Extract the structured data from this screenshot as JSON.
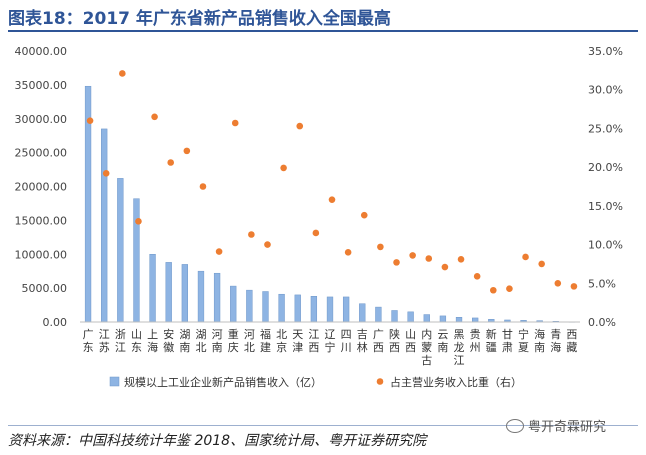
{
  "header": {
    "title": "图表18：2017 年广东省新产品销售收入全国最高"
  },
  "footer": {
    "source": "资料来源：中国科技统计年鉴 2018、国家统计局、粤开证券研究院",
    "watermark": "粤开奇霖研究"
  },
  "chart_data": {
    "type": "bar+scatter",
    "title": "",
    "categories": [
      "广东",
      "江苏",
      "浙江",
      "山东",
      "上海",
      "安徽",
      "湖南",
      "湖北",
      "河南",
      "重庆",
      "河北",
      "福建",
      "北京",
      "天津",
      "江西",
      "辽宁",
      "四川",
      "吉林",
      "广西",
      "陕西",
      "山西",
      "内蒙古",
      "云南",
      "黑龙江",
      "贵州",
      "新疆",
      "甘肃",
      "宁夏",
      "海南",
      "青海",
      "西藏"
    ],
    "category_labels": [
      [
        "广",
        "东"
      ],
      [
        "江",
        "苏"
      ],
      [
        "浙",
        "江"
      ],
      [
        "山",
        "东"
      ],
      [
        "上",
        "海"
      ],
      [
        "安",
        "徽"
      ],
      [
        "湖",
        "南"
      ],
      [
        "湖",
        "北"
      ],
      [
        "河",
        "南"
      ],
      [
        "重",
        "庆"
      ],
      [
        "河",
        "北"
      ],
      [
        "福",
        "建"
      ],
      [
        "北",
        "京"
      ],
      [
        "天",
        "津"
      ],
      [
        "江",
        "西"
      ],
      [
        "辽",
        "宁"
      ],
      [
        "四",
        "川"
      ],
      [
        "吉",
        "林"
      ],
      [
        "广",
        "西"
      ],
      [
        "陕",
        "西"
      ],
      [
        "山",
        "西"
      ],
      [
        "内",
        "蒙",
        "古"
      ],
      [
        "云",
        "南"
      ],
      [
        "黑",
        "龙",
        "江"
      ],
      [
        "贵",
        "州"
      ],
      [
        "新",
        "疆"
      ],
      [
        "甘",
        "肃"
      ],
      [
        "宁",
        "夏"
      ],
      [
        "海",
        "南"
      ],
      [
        "青",
        "海"
      ],
      [
        "西",
        "藏"
      ]
    ],
    "series": [
      {
        "name": "规模以上工业企业新产品销售收入（亿）",
        "kind": "bar",
        "axis": "left",
        "color": "#8eb4e3",
        "values": [
          34800,
          28500,
          21200,
          18200,
          10000,
          8800,
          8500,
          7500,
          7200,
          5300,
          4700,
          4500,
          4100,
          4000,
          3800,
          3700,
          3700,
          2700,
          2200,
          1700,
          1500,
          1100,
          900,
          700,
          600,
          400,
          300,
          250,
          200,
          100,
          30
        ]
      },
      {
        "name": "占主营业务收入比重（右）",
        "kind": "scatter",
        "axis": "right",
        "color": "#ed7d31",
        "values": [
          26.0,
          19.2,
          32.1,
          13.0,
          26.5,
          20.6,
          22.1,
          17.5,
          9.1,
          25.7,
          11.3,
          10.0,
          19.9,
          25.3,
          11.5,
          15.8,
          9.0,
          13.8,
          9.7,
          7.7,
          8.6,
          8.2,
          7.1,
          8.1,
          5.9,
          4.1,
          4.3,
          8.4,
          7.5,
          5.0,
          4.6
        ]
      }
    ],
    "y_left": {
      "range": [
        0,
        40000
      ],
      "ticks": [
        0,
        5000,
        10000,
        15000,
        20000,
        25000,
        30000,
        35000,
        40000
      ],
      "tick_labels": [
        "0.00",
        "5000.00",
        "10000.00",
        "15000.00",
        "20000.00",
        "25000.00",
        "30000.00",
        "35000.00",
        "40000.00"
      ]
    },
    "y_right": {
      "range": [
        0,
        35
      ],
      "ticks": [
        0,
        5,
        10,
        15,
        20,
        25,
        30,
        35
      ],
      "tick_labels": [
        "0.0%",
        "5.0%",
        "10.0%",
        "15.0%",
        "20.0%",
        "25.0%",
        "30.0%",
        "35.0%"
      ]
    },
    "grid": false,
    "legend_position": "bottom"
  }
}
